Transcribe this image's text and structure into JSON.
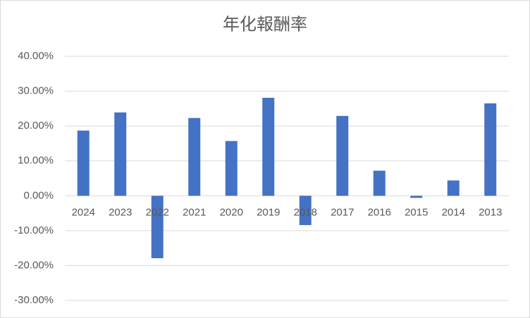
{
  "chart_data": {
    "type": "bar",
    "title": "年化報酬率",
    "categories": [
      "2024",
      "2023",
      "2022",
      "2021",
      "2020",
      "2019",
      "2018",
      "2017",
      "2016",
      "2015",
      "2014",
      "2013"
    ],
    "values": [
      18.7,
      23.9,
      -17.9,
      22.3,
      15.7,
      28.1,
      -8.4,
      22.9,
      7.2,
      -0.6,
      4.4,
      26.5
    ],
    "color": "#4472c4",
    "ylim": [
      -30,
      40
    ],
    "yticks": [
      {
        "value": -30,
        "label": "-30.00%"
      },
      {
        "value": -20,
        "label": "-20.00%"
      },
      {
        "value": -10,
        "label": "-10.00%"
      },
      {
        "value": 0,
        "label": "0.00%"
      },
      {
        "value": 10,
        "label": "10.00%"
      },
      {
        "value": 20,
        "label": "20.00%"
      },
      {
        "value": 30,
        "label": "30.00%"
      },
      {
        "value": 40,
        "label": "40.00%"
      }
    ],
    "grid": true
  }
}
